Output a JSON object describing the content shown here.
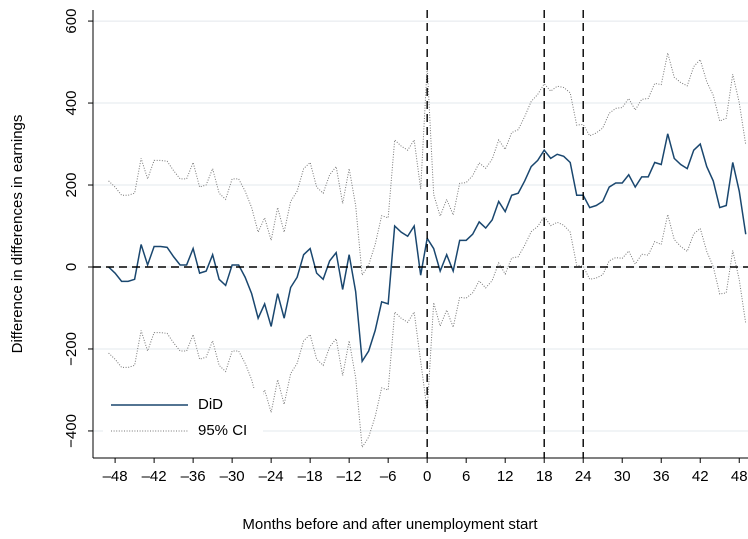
{
  "chart_data": {
    "type": "line",
    "x_label": "Months before and after unemployment start",
    "y_label": "Difference in differences in earnings",
    "x": [
      -49,
      -48,
      -47,
      -46,
      -45,
      -44,
      -43,
      -42,
      -41,
      -40,
      -39,
      -38,
      -37,
      -36,
      -35,
      -34,
      -33,
      -32,
      -31,
      -30,
      -29,
      -28,
      -27,
      -26,
      -25,
      -24,
      -23,
      -22,
      -21,
      -20,
      -19,
      -18,
      -17,
      -16,
      -15,
      -14,
      -13,
      -12,
      -11,
      -10,
      -9,
      -8,
      -7,
      -6,
      -5,
      -4,
      -3,
      -2,
      -1,
      0,
      1,
      2,
      3,
      4,
      5,
      6,
      7,
      8,
      9,
      10,
      11,
      12,
      13,
      14,
      15,
      16,
      17,
      18,
      19,
      20,
      21,
      22,
      23,
      24,
      25,
      26,
      27,
      28,
      29,
      30,
      31,
      32,
      33,
      34,
      35,
      36,
      37,
      38,
      39,
      40,
      41,
      42,
      43,
      44,
      45,
      46,
      47,
      48,
      49
    ],
    "series": [
      {
        "name": "DiD",
        "color": "#1a476f",
        "values": [
          0,
          -15,
          -35,
          -35,
          -30,
          55,
          5,
          50,
          50,
          48,
          25,
          5,
          5,
          45,
          -15,
          -10,
          30,
          -30,
          -45,
          5,
          5,
          -25,
          -65,
          -125,
          -90,
          -145,
          -65,
          -125,
          -50,
          -25,
          30,
          45,
          -15,
          -30,
          15,
          35,
          -55,
          30,
          -60,
          -230,
          -205,
          -155,
          -85,
          -90,
          100,
          85,
          75,
          100,
          -20,
          70,
          45,
          -10,
          30,
          -10,
          65,
          65,
          80,
          110,
          95,
          115,
          160,
          135,
          175,
          180,
          210,
          245,
          260,
          285,
          265,
          275,
          270,
          255,
          175,
          175,
          145,
          150,
          160,
          195,
          205,
          205,
          225,
          195,
          220,
          220,
          255,
          250,
          325,
          265,
          250,
          240,
          285,
          300,
          245,
          210,
          145,
          150,
          255,
          185,
          80
        ]
      },
      {
        "name": "95% CI",
        "color": "#777777",
        "upper": [
          210,
          195,
          175,
          175,
          180,
          265,
          215,
          260,
          260,
          258,
          235,
          215,
          215,
          255,
          195,
          200,
          240,
          180,
          165,
          215,
          215,
          185,
          145,
          85,
          120,
          65,
          145,
          85,
          160,
          185,
          240,
          255,
          195,
          180,
          225,
          245,
          155,
          240,
          150,
          -20,
          5,
          55,
          125,
          120,
          310,
          295,
          285,
          310,
          190,
          490,
          177,
          124,
          165,
          127,
          204,
          206,
          223,
          254,
          241,
          263,
          310,
          287,
          328,
          335,
          367,
          404,
          421,
          447,
          429,
          441,
          438,
          425,
          346,
          348,
          320,
          327,
          339,
          375,
          387,
          389,
          411,
          383,
          409,
          411,
          448,
          445,
          522,
          463,
          450,
          442,
          489,
          506,
          452,
          419,
          356,
          363,
          470,
          401,
          298
        ],
        "lower": [
          -210,
          -225,
          -245,
          -245,
          -240,
          -155,
          -205,
          -160,
          -160,
          -162,
          -185,
          -205,
          -205,
          -165,
          -225,
          -220,
          -180,
          -240,
          -255,
          -205,
          -205,
          -235,
          -275,
          -335,
          -300,
          -355,
          -275,
          -335,
          -260,
          -235,
          -180,
          -165,
          -225,
          -240,
          -195,
          -175,
          -265,
          -180,
          -270,
          -440,
          -415,
          -365,
          -295,
          -300,
          -110,
          -125,
          -135,
          -110,
          -230,
          -350,
          -87,
          -144,
          -105,
          -147,
          -74,
          -76,
          -63,
          -34,
          -51,
          -33,
          10,
          -17,
          22,
          25,
          53,
          86,
          99,
          123,
          101,
          109,
          102,
          85,
          4,
          2,
          -30,
          -27,
          -19,
          15,
          23,
          21,
          39,
          7,
          31,
          29,
          62,
          55,
          128,
          67,
          50,
          38,
          81,
          94,
          38,
          1,
          -66,
          -63,
          40,
          -31,
          -138
        ]
      }
    ],
    "xlim": [
      -51.4,
      49.5
    ],
    "ylim": [
      -466,
      627
    ],
    "xticks": [
      {
        "value": -48,
        "label": "–48"
      },
      {
        "value": -42,
        "label": "–42"
      },
      {
        "value": -36,
        "label": "–36"
      },
      {
        "value": -30,
        "label": "–30"
      },
      {
        "value": -24,
        "label": "–24"
      },
      {
        "value": -18,
        "label": "–18"
      },
      {
        "value": -12,
        "label": "–12"
      },
      {
        "value": -6,
        "label": "–6"
      },
      0,
      6,
      12,
      18,
      24,
      30,
      36,
      42,
      48
    ],
    "yticks": [
      {
        "value": -400,
        "label": "−400"
      },
      {
        "value": -200,
        "label": "−200"
      },
      0,
      200,
      400,
      600
    ],
    "grid": true,
    "reference_lines": {
      "x": [
        0,
        18,
        24
      ],
      "y": [
        0
      ]
    },
    "legend": "lower left"
  }
}
